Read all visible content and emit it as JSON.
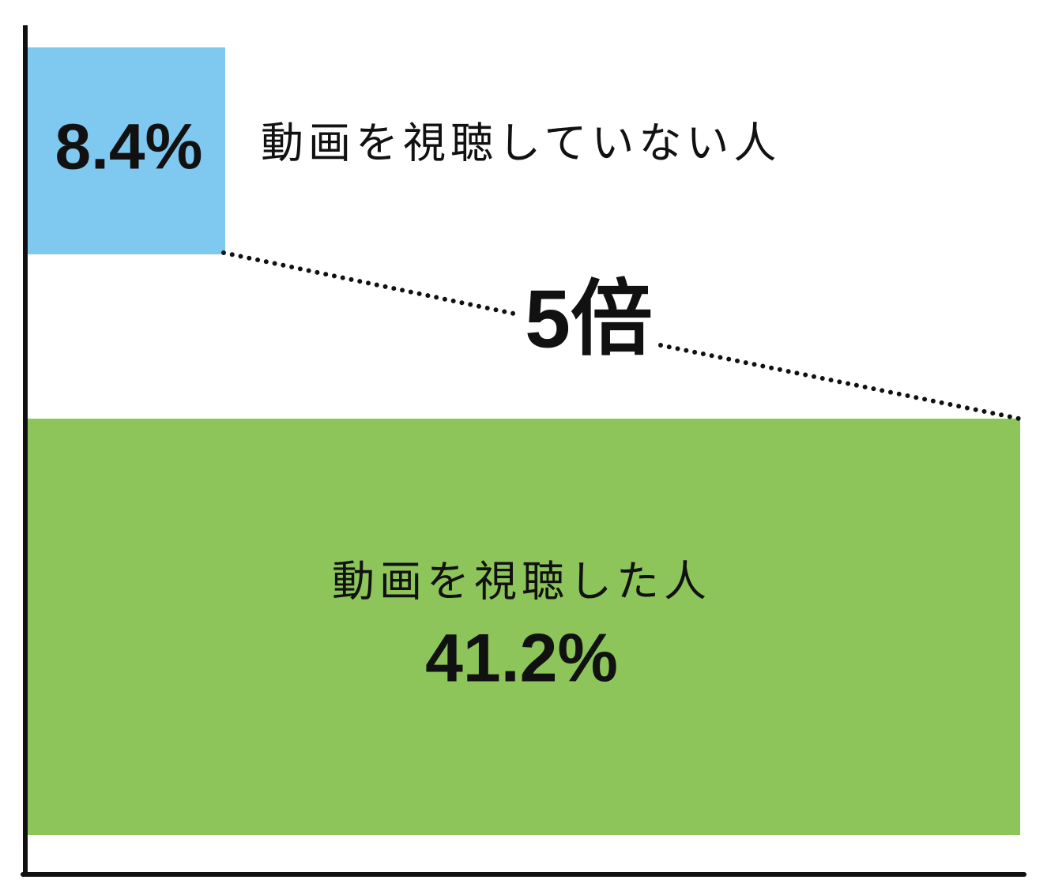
{
  "chart_data": {
    "type": "comparison",
    "categories": [
      "動画を視聴していない人",
      "動画を視聴した人"
    ],
    "values": [
      8.4,
      41.2
    ],
    "value_labels": [
      "8.4%",
      "41.2%"
    ],
    "colors": [
      "#7fc8f0",
      "#8dc55a"
    ],
    "annotation": "5倍"
  }
}
